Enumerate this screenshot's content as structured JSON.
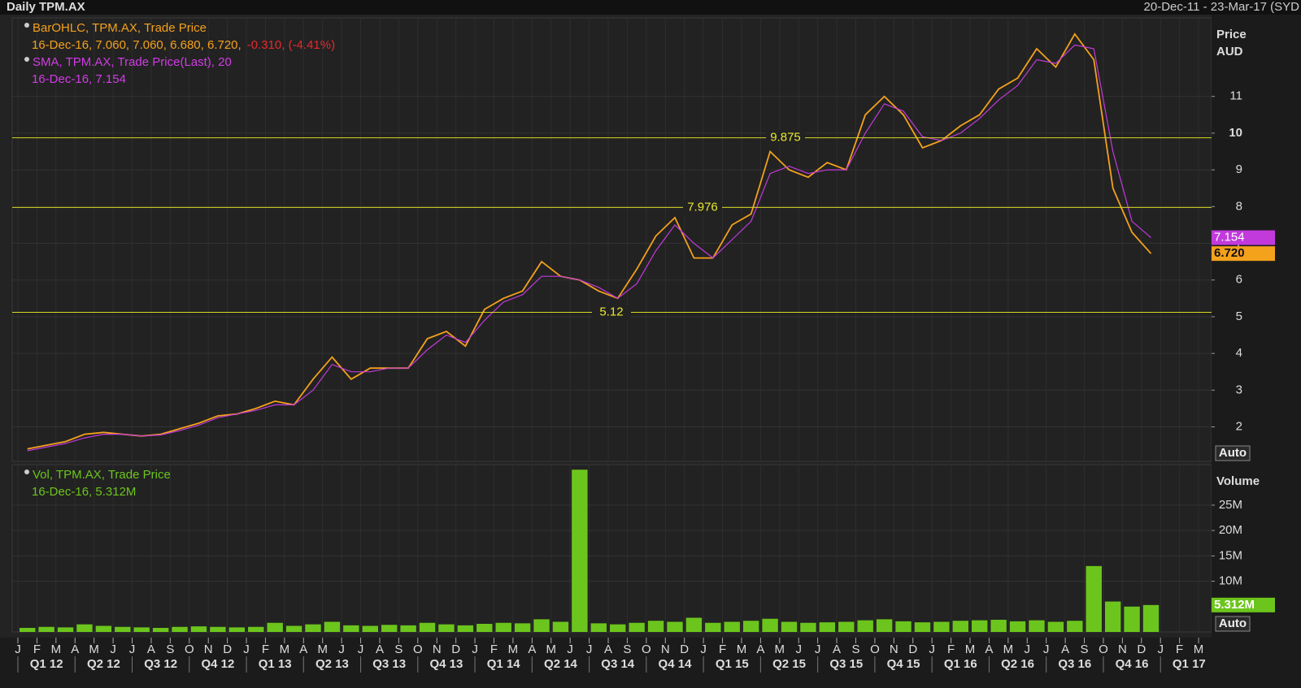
{
  "header": {
    "title": "Daily TPM.AX",
    "range": "20-Dec-11 - 23-Mar-17 (SYD"
  },
  "chart_data": [
    {
      "type": "line",
      "y_axis_title": "Price",
      "y_axis_unit": "AUD",
      "auto_button": "Auto",
      "ylim": [
        1.06,
        13.14
      ],
      "yticks": [
        2,
        3,
        4,
        5,
        6,
        7,
        8,
        9,
        10,
        11
      ],
      "grid": true,
      "legend": [
        {
          "lines": [
            "BarOHLC, TPM.AX, Trade Price",
            "16-Dec-16, 7.060, 7.060, 6.680, 6.720,"
          ],
          "change": "-0.310, (-4.41%)",
          "color": "#f4a11c"
        },
        {
          "lines": [
            "SMA, TPM.AX, Trade Price(Last),  20",
            "16-Dec-16, 7.154"
          ],
          "color": "#d23ce6"
        }
      ],
      "hlines": [
        9.875,
        7.976,
        5.12
      ],
      "hline_color": "#d8d820",
      "series": [
        {
          "name": "TPM.AX",
          "color": "#f4a11c",
          "last_label": "6.720",
          "values": [
            1.4,
            1.5,
            1.6,
            1.8,
            1.85,
            1.8,
            1.75,
            1.8,
            1.95,
            2.1,
            2.3,
            2.35,
            2.5,
            2.7,
            2.6,
            3.3,
            3.9,
            3.3,
            3.6,
            3.6,
            3.6,
            4.4,
            4.6,
            4.2,
            5.2,
            5.5,
            5.7,
            6.5,
            6.1,
            6.0,
            5.7,
            5.5,
            6.3,
            7.2,
            7.7,
            6.6,
            6.6,
            7.5,
            7.8,
            9.5,
            9.0,
            8.8,
            9.2,
            9.0,
            10.5,
            11.0,
            10.5,
            9.6,
            9.8,
            10.2,
            10.5,
            11.2,
            11.5,
            12.3,
            11.8,
            12.7,
            12.0,
            8.5,
            7.3,
            6.72,
            null,
            null,
            null
          ]
        },
        {
          "name": "SMA",
          "color": "#c23adc",
          "last_label": "7.154",
          "values": [
            1.35,
            1.45,
            1.55,
            1.7,
            1.8,
            1.8,
            1.75,
            1.78,
            1.9,
            2.05,
            2.25,
            2.35,
            2.45,
            2.6,
            2.6,
            3.0,
            3.7,
            3.5,
            3.5,
            3.6,
            3.6,
            4.1,
            4.5,
            4.3,
            4.9,
            5.4,
            5.6,
            6.1,
            6.1,
            6.0,
            5.8,
            5.5,
            5.9,
            6.8,
            7.5,
            7.0,
            6.6,
            7.1,
            7.6,
            8.9,
            9.1,
            8.9,
            9.0,
            9.0,
            10.0,
            10.8,
            10.6,
            9.9,
            9.8,
            10.0,
            10.4,
            10.9,
            11.3,
            12.0,
            11.9,
            12.4,
            12.3,
            9.5,
            7.6,
            7.154,
            null,
            null,
            null
          ]
        }
      ]
    },
    {
      "type": "bar",
      "y_axis_title": "Volume",
      "auto_button": "Auto",
      "color": "#6cc51c",
      "legend": [
        {
          "lines": [
            "Vol, TPM.AX, Trade Price",
            "16-Dec-16, 5.312M"
          ],
          "color": "#6cc51c"
        }
      ],
      "last_label": "5.312M",
      "ylim": [
        0,
        33000000
      ],
      "yticks": [
        {
          "value": 10000000,
          "label": "10M"
        },
        {
          "value": 15000000,
          "label": "15M"
        },
        {
          "value": 20000000,
          "label": "20M"
        },
        {
          "value": 25000000,
          "label": "25M"
        }
      ],
      "categories": [
        "J",
        "F",
        "M",
        "A",
        "M",
        "J",
        "J",
        "A",
        "S",
        "O",
        "N",
        "D",
        "J",
        "F",
        "M",
        "A",
        "M",
        "J",
        "J",
        "A",
        "S",
        "O",
        "N",
        "D",
        "J",
        "F",
        "M",
        "A",
        "M",
        "J",
        "J",
        "A",
        "S",
        "O",
        "N",
        "D",
        "J",
        "F",
        "M",
        "A",
        "M",
        "J",
        "J",
        "A",
        "S",
        "O",
        "N",
        "D",
        "J",
        "F",
        "M",
        "A",
        "M",
        "J",
        "J",
        "A",
        "S",
        "O",
        "N",
        "D",
        "J",
        "F",
        "M"
      ],
      "quarters": [
        "Q1 12",
        "Q2 12",
        "Q3 12",
        "Q4 12",
        "Q1 13",
        "Q2 13",
        "Q3 13",
        "Q4 13",
        "Q1 14",
        "Q2 14",
        "Q3 14",
        "Q4 14",
        "Q1 15",
        "Q2 15",
        "Q3 15",
        "Q4 15",
        "Q1 16",
        "Q2 16",
        "Q3 16",
        "Q4 16",
        "Q1 17"
      ],
      "values": [
        800000,
        1000000,
        900000,
        1500000,
        1200000,
        1000000,
        900000,
        800000,
        1000000,
        1100000,
        1000000,
        900000,
        1000000,
        1800000,
        1200000,
        1500000,
        2000000,
        1300000,
        1200000,
        1400000,
        1300000,
        1800000,
        1500000,
        1300000,
        1600000,
        1800000,
        1700000,
        2500000,
        2000000,
        32000000,
        1700000,
        1500000,
        1800000,
        2200000,
        2000000,
        2800000,
        1800000,
        2000000,
        2200000,
        2600000,
        2000000,
        1800000,
        1900000,
        2000000,
        2300000,
        2500000,
        2100000,
        1900000,
        2000000,
        2200000,
        2300000,
        2400000,
        2100000,
        2300000,
        2000000,
        2200000,
        13000000,
        6000000,
        5000000,
        5312000,
        null,
        null,
        null
      ]
    }
  ]
}
